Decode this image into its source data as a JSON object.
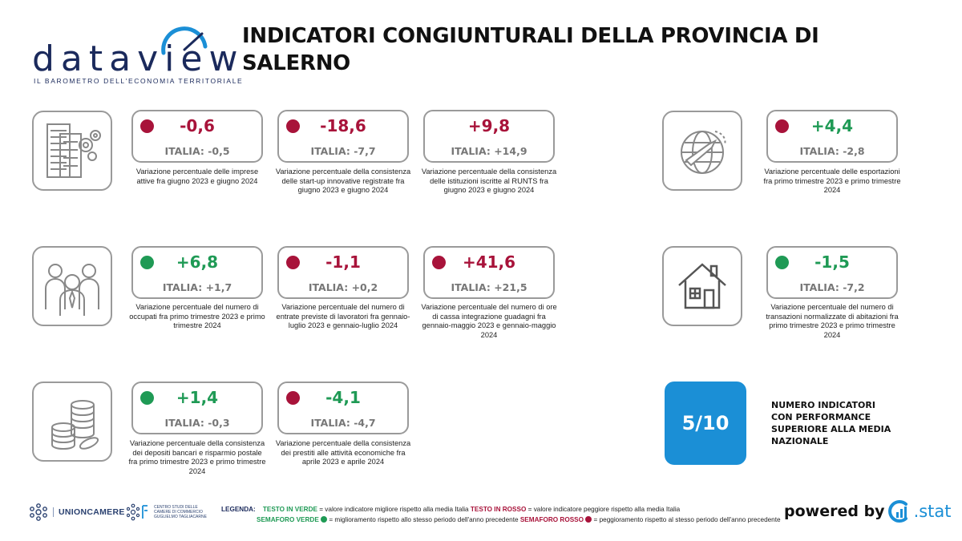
{
  "header": {
    "logo_word": "dataview",
    "logo_sub": "IL BAROMETRO DELL'ECONOMIA TERRITORIALE",
    "title": "INDICATORI CONGIUNTURALI DELLA PROVINCIA DI SALERNO"
  },
  "indicators": [
    {
      "value": "-0,6",
      "value_color": "red",
      "light": "red",
      "italia": "ITALIA: -0,5",
      "desc": "Variazione percentuale delle imprese attive fra giugno 2023 e giugno 2024"
    },
    {
      "value": "-18,6",
      "value_color": "red",
      "light": "red",
      "italia": "ITALIA: -7,7",
      "desc": "Variazione percentuale della consistenza delle start-up innovative registrate fra giugno 2023 e giugno 2024"
    },
    {
      "value": "+9,8",
      "value_color": "red",
      "light": "none",
      "italia": "ITALIA: +14,9",
      "desc": "Variazione percentuale della consistenza delle istituzioni iscritte al RUNTS fra giugno 2023 e giugno 2024"
    },
    {
      "value": "+4,4",
      "value_color": "green",
      "light": "red",
      "italia": "ITALIA: -2,8",
      "desc": "Variazione percentuale delle esportazioni fra primo trimestre 2023 e primo trimestre 2024"
    },
    {
      "value": "+6,8",
      "value_color": "green",
      "light": "green",
      "italia": "ITALIA: +1,7",
      "desc": "Variazione percentuale del numero di occupati fra primo trimestre 2023 e primo trimestre 2024"
    },
    {
      "value": "-1,1",
      "value_color": "red",
      "light": "red",
      "italia": "ITALIA: +0,2",
      "desc": "Variazione percentuale del numero di entrate previste di lavoratori fra gennaio-luglio 2023 e gennaio-luglio 2024"
    },
    {
      "value": "+41,6",
      "value_color": "red",
      "light": "red",
      "italia": "ITALIA: +21,5",
      "desc": "Variazione percentuale del numero di ore di cassa integrazione guadagni fra gennaio-maggio 2023 e gennaio-maggio 2024"
    },
    {
      "value": "-1,5",
      "value_color": "green",
      "light": "green",
      "italia": "ITALIA: -7,2",
      "desc": "Variazione percentuale del numero di transazioni normalizzate di abitazioni fra primo trimestre 2023 e primo trimestre 2024"
    },
    {
      "value": "+1,4",
      "value_color": "green",
      "light": "green",
      "italia": "ITALIA: -0,3",
      "desc": "Variazione percentuale della consistenza dei depositi bancari e risparmio postale fra primo trimestre 2023 e primo trimestre 2024"
    },
    {
      "value": "-4,1",
      "value_color": "green",
      "light": "red",
      "italia": "ITALIA: -4,7",
      "desc": "Variazione percentuale della consistenza dei prestiti alle attività economiche fra aprile 2023 e aprile 2024"
    }
  ],
  "icons": {
    "imprese": "buildings-gears-icon",
    "export": "globe-plane-icon",
    "lavoro": "workers-group-icon",
    "abitazioni": "house-icon",
    "risparmio": "coins-stack-icon"
  },
  "summary": {
    "score": "5/10",
    "label": "NUMERO INDICATORI CON PERFORMANCE SUPERIORE ALLA MEDIA NAZIONALE"
  },
  "footer": {
    "unioncamere": "UNIONCAMERE",
    "centro_studi": "CENTRO STUDI DELLE CAMERE DI COMMERCIO GUGLIELMO TAGLIACARNE",
    "legend_title": "LEGENDA:",
    "legend_green_text": "TESTO IN VERDE",
    "legend_green_text_desc": "= valore indicatore migliore rispetto alla media Italia",
    "legend_red_text": "TESTO IN ROSSO",
    "legend_red_text_desc": "= valore indicatore peggiore rispetto alla media Italia",
    "legend_green_light": "SEMAFORO VERDE",
    "legend_green_light_desc": "= miglioramento rispetto allo stesso periodo dell'anno precedente",
    "legend_red_light": "SEMAFORO ROSSO",
    "legend_red_light_desc": "= peggioramento rispetto al stesso periodo dell'anno precedente",
    "powered_by": "powered by",
    "stat_brand": ".stat"
  },
  "colors": {
    "red": "#a8133a",
    "green": "#1f9a55",
    "blue": "#1b8fd6",
    "navy": "#1b2a5c",
    "border": "#9a9a9a"
  }
}
